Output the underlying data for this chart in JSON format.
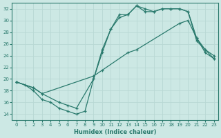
{
  "xlabel": "Humidex (Indice chaleur)",
  "xlim": [
    -0.5,
    23.5
  ],
  "ylim": [
    13,
    33
  ],
  "yticks": [
    14,
    16,
    18,
    20,
    22,
    24,
    26,
    28,
    30,
    32
  ],
  "xticks": [
    0,
    1,
    2,
    3,
    4,
    5,
    6,
    7,
    8,
    9,
    10,
    11,
    12,
    13,
    14,
    15,
    16,
    17,
    18,
    19,
    20,
    21,
    22,
    23
  ],
  "bg_color": "#cce8e4",
  "line_color": "#2a7a6d",
  "grid_color": "#b8d8d4",
  "line1_x": [
    0,
    1,
    2,
    3,
    4,
    5,
    6,
    7,
    8,
    9,
    10,
    11,
    12,
    13,
    14,
    15,
    16,
    17,
    18,
    19,
    20,
    21,
    22,
    23
  ],
  "line1_y": [
    19.5,
    19.0,
    18.0,
    16.5,
    16.0,
    15.0,
    14.5,
    14.0,
    14.5,
    20.0,
    24.5,
    28.5,
    31.0,
    31.0,
    32.5,
    31.5,
    31.5,
    32.0,
    32.0,
    32.0,
    31.5,
    27.0,
    25.0,
    24.0
  ],
  "line2_x": [
    0,
    2,
    3,
    5,
    6,
    7,
    9,
    10,
    11,
    12,
    13,
    14,
    15,
    16,
    17,
    18,
    19,
    20,
    21,
    22,
    23
  ],
  "line2_y": [
    19.5,
    18.5,
    17.5,
    16.0,
    15.5,
    15.0,
    20.0,
    25.0,
    28.5,
    30.5,
    31.0,
    32.5,
    32.0,
    31.5,
    32.0,
    32.0,
    32.0,
    31.5,
    26.5,
    25.0,
    23.5
  ],
  "line3_x": [
    0,
    2,
    3,
    9,
    10,
    13,
    14,
    19,
    20,
    21,
    22,
    23
  ],
  "line3_y": [
    19.5,
    18.5,
    17.5,
    20.5,
    21.5,
    24.5,
    25.0,
    29.5,
    30.0,
    27.0,
    24.5,
    23.5
  ]
}
